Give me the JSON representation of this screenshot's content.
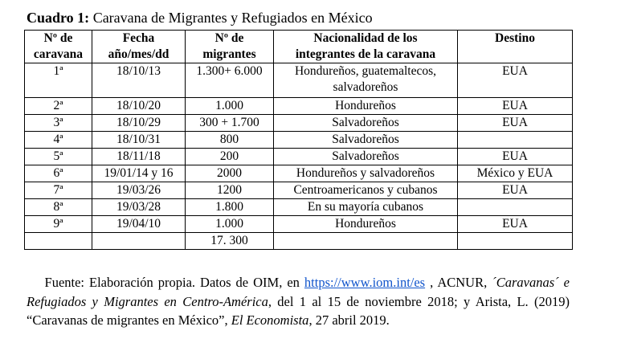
{
  "title": {
    "label": "Cuadro 1:",
    "text": " Caravana de Migrantes y Refugiados en México"
  },
  "headers": [
    [
      "Nº de",
      "caravana"
    ],
    [
      "Fecha",
      "año/mes/dd"
    ],
    [
      "Nº de",
      "migrantes"
    ],
    [
      "Nacionalidad de los",
      "integrantes de la caravana"
    ],
    [
      "Destino",
      ""
    ]
  ],
  "rows": [
    [
      "1ª",
      "18/10/13",
      "1.300+ 6.000",
      "Hondureños, guatemaltecos, salvadoreños",
      "EUA"
    ],
    [
      "2ª",
      "18/10/20",
      "1.000",
      "Hondureños",
      "EUA"
    ],
    [
      "3ª",
      "18/10/29",
      "300 + 1.700",
      "Salvadoreños",
      "EUA"
    ],
    [
      "4ª",
      "18/10/31",
      "800",
      "Salvadoreños",
      ""
    ],
    [
      "5ª",
      "18/11/18",
      "200",
      "Salvadoreños",
      "EUA"
    ],
    [
      "6ª",
      "19/01/14 y 16",
      "2000",
      "Hondureños y salvadoreños",
      "México y EUA"
    ],
    [
      "7ª",
      "19/03/26",
      "1200",
      "Centroamericanos y cubanos",
      "EUA"
    ],
    [
      "8ª",
      "19/03/28",
      "1.800",
      "En su mayoría cubanos",
      ""
    ],
    [
      "9ª",
      "19/04/10",
      "1.000",
      "Hondureños",
      "EUA"
    ],
    [
      "",
      "",
      "17. 300",
      "",
      ""
    ]
  ],
  "footer": {
    "p1": "Fuente: Elaboración propia. Datos de OIM, en ",
    "link": "https://www.iom.int/es",
    "p2": " , ACNUR, ",
    "i1": "´Caravanas´ e Refugiados y Migrantes en Centro-América",
    "p3": ", del 1 al 15 de noviembre 2018; y Arista, L. (2019) “Caravanas de migrantes en México”, ",
    "i2": "El Economista",
    "p4": ", 27 abril 2019."
  },
  "colors": {
    "link": "#1155cc"
  }
}
